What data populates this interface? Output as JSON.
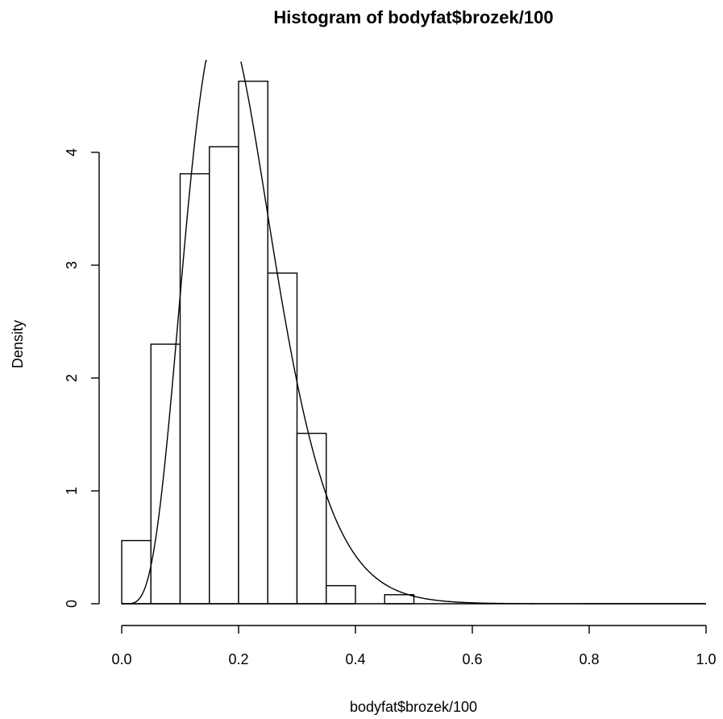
{
  "chart_data": {
    "type": "bar",
    "title": "Histogram of bodyfat$brozek/100",
    "xlabel": "bodyfat$brozek/100",
    "ylabel": "Density",
    "xlim": [
      0,
      1
    ],
    "ylim": [
      0,
      4.6
    ],
    "x_ticks": [
      "0.0",
      "0.2",
      "0.4",
      "0.6",
      "0.8",
      "1.0"
    ],
    "y_ticks": [
      "0",
      "1",
      "2",
      "3",
      "4"
    ],
    "bins": [
      {
        "start": 0.0,
        "end": 0.05,
        "density": 0.56
      },
      {
        "start": 0.05,
        "end": 0.1,
        "density": 2.3
      },
      {
        "start": 0.1,
        "end": 0.15,
        "density": 3.81
      },
      {
        "start": 0.15,
        "end": 0.2,
        "density": 4.05
      },
      {
        "start": 0.2,
        "end": 0.25,
        "density": 4.63
      },
      {
        "start": 0.25,
        "end": 0.3,
        "density": 2.93
      },
      {
        "start": 0.3,
        "end": 0.35,
        "density": 1.51
      },
      {
        "start": 0.35,
        "end": 0.4,
        "density": 0.16
      },
      {
        "start": 0.4,
        "end": 0.45,
        "density": 0.0
      },
      {
        "start": 0.45,
        "end": 0.5,
        "density": 0.08
      }
    ],
    "grid": false,
    "legend": "none"
  }
}
